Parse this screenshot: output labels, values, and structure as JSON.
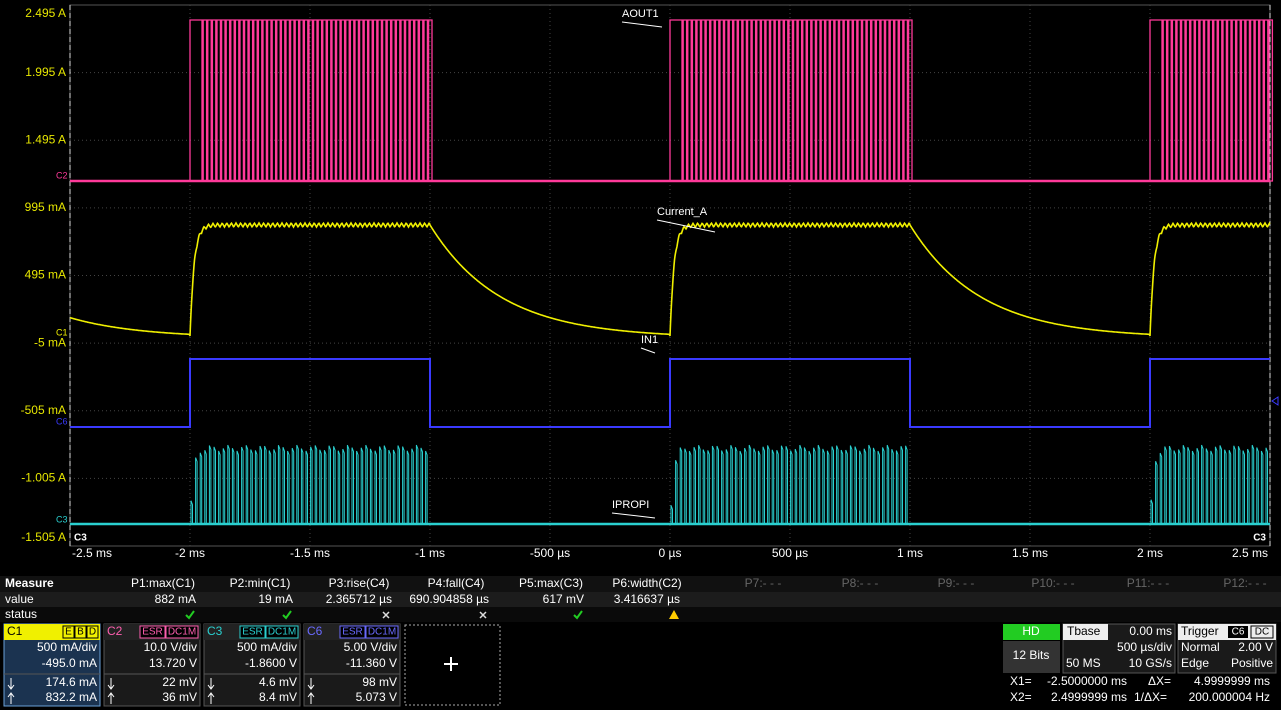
{
  "axes": {
    "y_labels": [
      "2.495 A",
      "1.995 A",
      "1.495 A",
      "995 mA",
      "495 mA",
      "-5 mA",
      "-505 mA",
      "-1.005 A",
      "-1.505 A"
    ],
    "x_labels": [
      "-2.5 ms",
      "-2 ms",
      "-1.5 ms",
      "-1 ms",
      "-500 µs",
      "0 µs",
      "500 µs",
      "1 ms",
      "1.5 ms",
      "2 ms",
      "2.5 ms"
    ]
  },
  "trace_labels": [
    "AOUT1",
    "Current_A",
    "IN1",
    "IPROPI"
  ],
  "channel_markers": [
    "C2",
    "C1",
    "C6",
    "C3"
  ],
  "corner_markers": [
    "C3",
    "C3"
  ],
  "measure": {
    "title": "Measure",
    "headers": [
      "P1:max(C1)",
      "P2:min(C1)",
      "P3:rise(C4)",
      "P4:fall(C4)",
      "P5:max(C3)",
      "P6:width(C2)",
      "P7:- - -",
      "P8:- - -",
      "P9:- - -",
      "P10:- - -",
      "P11:- - -",
      "P12:- - -"
    ],
    "row_labels": [
      "value",
      "status"
    ],
    "values": [
      "882 mA",
      "19 mA",
      "2.365712 µs",
      "690.904858 µs",
      "617 mV",
      "3.416637 µs"
    ]
  },
  "channels": [
    {
      "name": "C1",
      "tags": [
        "E",
        "B",
        "D"
      ],
      "rows": [
        "500 mA/div",
        "-495.0 mA"
      ],
      "cursors": [
        "174.6 mA",
        "832.2 mA"
      ]
    },
    {
      "name": "C2",
      "tags": [
        "ESR",
        "DC1M"
      ],
      "rows": [
        "10.0 V/div",
        "13.720 V"
      ],
      "cursors": [
        "22 mV",
        "36 mV"
      ]
    },
    {
      "name": "C3",
      "tags": [
        "ESR",
        "DC1M"
      ],
      "rows": [
        "500 mA/div",
        "-1.8600 V"
      ],
      "cursors": [
        "4.6 mV",
        "8.4 mV"
      ]
    },
    {
      "name": "C6",
      "tags": [
        "ESR",
        "DC1M"
      ],
      "rows": [
        "5.00 V/div",
        "-11.360 V"
      ],
      "cursors": [
        "98 mV",
        "5.073 V"
      ]
    }
  ],
  "timebase": {
    "hd": "HD",
    "bits": "12 Bits",
    "label": "Tbase",
    "delay": "0.00 ms",
    "div": "500 µs/div",
    "samples": "50 MS",
    "rate": "10 GS/s"
  },
  "trigger": {
    "label": "Trigger",
    "tags": [
      "C6",
      "DC"
    ],
    "mode": "Normal",
    "level": "2.00 V",
    "type": "Edge",
    "slope": "Positive"
  },
  "cursors": {
    "x1_label": "X1=",
    "x1": "-2.5000000 ms",
    "dx_label": "ΔX=",
    "dx": "4.9999999 ms",
    "x2_label": "X2=",
    "x2": "2.4999999 ms",
    "idx_label": "1/ΔX=",
    "idx": "200.000004 Hz"
  }
}
